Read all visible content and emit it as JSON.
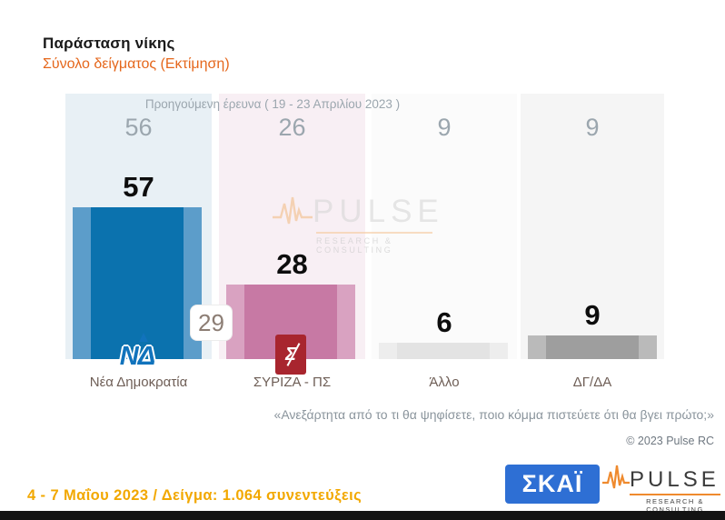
{
  "title": {
    "text": "Παράσταση νίκης",
    "subtitle": "Σύνολο δείγματος  (Εκτίμηση)"
  },
  "chart_data": {
    "type": "bar",
    "title": "Παράσταση νίκης",
    "subtitle": "Σύνολο δείγματος (Εκτίμηση)",
    "prev_series_label": "Προηγούμενη έρευνα  ( 19 - 23 Απριλίου  2023 )",
    "categories": [
      "Νέα Δημοκρατία",
      "ΣΥΡΙΖΑ - ΠΣ",
      "Άλλο",
      "ΔΓ/ΔΑ"
    ],
    "series": [
      {
        "name": "Προηγούμενη έρευνα (19 - 23 Απριλίου 2023)",
        "values": [
          56,
          26,
          9,
          9
        ]
      },
      {
        "name": "Εκτίμηση (4 - 7 Μαΐου 2023)",
        "values": [
          57,
          28,
          6,
          9
        ]
      }
    ],
    "lead_badge": "29",
    "legend_position": "none",
    "gridlines": false,
    "ylim": [
      0,
      100
    ],
    "columns": [
      {
        "label": "Νέα Δημοκρατία",
        "prev": "56",
        "value": "57",
        "bar_color": "#0b72ae",
        "bar_edge": "#5c9dca",
        "bg": "#e8f0f5"
      },
      {
        "label": "ΣΥΡΙΖΑ - ΠΣ",
        "prev": "26",
        "value": "28",
        "bar_color": "#c779a4",
        "bar_edge": "#d9a2c1",
        "bg": "#f8eff4"
      },
      {
        "label": "Άλλο",
        "prev": "9",
        "value": "6",
        "bar_color": "#e3e3e3",
        "bar_edge": "#ededed",
        "bg": "#fbfbfb"
      },
      {
        "label": "ΔΓ/ΔΑ",
        "prev": "9",
        "value": "9",
        "bar_color": "#9e9e9e",
        "bar_edge": "#bababa",
        "bg": "#f5f5f5"
      }
    ]
  },
  "question": "«Ανεξάρτητα από το τι θα ψηφίσετε, ποιο κόμμα πιστεύετε ότι θα βγει πρώτο;»",
  "copyright": "© 2023 Pulse RC",
  "footer": {
    "fieldwork": "4 - 7  Μαΐου  2023  /  Δείγμα:  1.064 συνεντεύξεις"
  },
  "logos": {
    "nd_text": "ΝΔ",
    "syriza_text": "Σ",
    "skai_text": "ΣΚΑΪ",
    "pulse_text": "PULSE",
    "pulse_sub": "RESEARCH & CONSULTING"
  },
  "watermark": {
    "text": "PULSE",
    "sub": "RESEARCH & CONSULTING"
  },
  "colors": {
    "subtitle_orange": "#e5671c",
    "fieldwork_orange": "#f2a800",
    "prev_gray": "#9ba6ae",
    "label_brown": "#6e5e56",
    "nd_blue": "#0b72ae",
    "syriza_pink": "#c779a4",
    "other_gray": "#e3e3e3",
    "dgda_gray": "#9e9e9e",
    "skai_blue": "#2e6fd4",
    "syriza_logo_red": "#a8252e",
    "pulse_orange": "#ef8a2e"
  }
}
